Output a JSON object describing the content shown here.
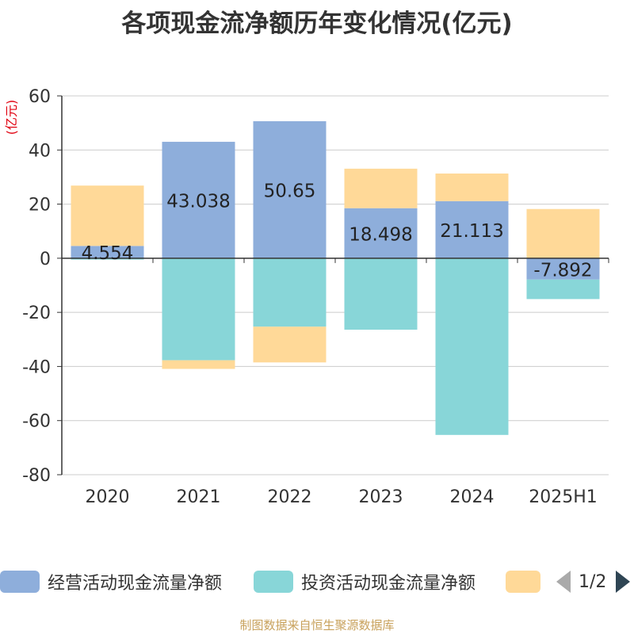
{
  "title": "各项现金流净额历年变化情况(亿元)",
  "source": "制图数据来自恒生聚源数据库",
  "legend": {
    "items": [
      {
        "label": "经营活动现金流量净额",
        "color": "#8eaedb"
      },
      {
        "label": "投资活动现金流量净额",
        "color": "#88d6d8"
      },
      {
        "label": "",
        "color": "#ffd998"
      }
    ],
    "page_text": "1/2"
  },
  "chart_data": {
    "type": "bar",
    "stacked": true,
    "ylabel": "(亿元)",
    "ylim": [
      -80,
      60
    ],
    "yticks": [
      60,
      40,
      20,
      0,
      -20,
      -40,
      -60,
      -80
    ],
    "categories": [
      "2020",
      "2021",
      "2022",
      "2023",
      "2024",
      "2025H1"
    ],
    "grid": true,
    "legend_position": "bottom",
    "series": [
      {
        "name": "经营活动现金流量净额",
        "color": "#8eaedb",
        "values": [
          4.554,
          43.038,
          50.65,
          18.498,
          21.113,
          -7.892
        ],
        "labels": [
          "4.554",
          "43.038",
          "50.65",
          "18.498",
          "21.113",
          "-7.892"
        ]
      },
      {
        "name": "投资活动现金流量净额",
        "color": "#88d6d8",
        "values": [
          -0.5,
          -37.7,
          -25.3,
          -26.4,
          -65.3,
          -7.2
        ]
      },
      {
        "color": "#ffd998",
        "values": [
          22.3,
          -3.2,
          -13.2,
          14.6,
          10.2,
          18.2
        ]
      }
    ]
  }
}
